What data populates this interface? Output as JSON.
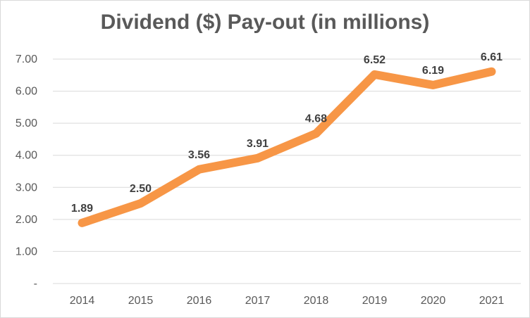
{
  "chart_data": {
    "type": "line",
    "title": "Dividend ($) Pay-out (in millions)",
    "xlabel": "",
    "ylabel": "",
    "categories": [
      "2014",
      "2015",
      "2016",
      "2017",
      "2018",
      "2019",
      "2020",
      "2021"
    ],
    "series": [
      {
        "values": [
          1.89,
          2.5,
          3.56,
          3.91,
          4.68,
          6.52,
          6.19,
          6.61
        ],
        "labels": [
          "1.89",
          "2.50",
          "3.56",
          "3.91",
          "4.68",
          "6.52",
          "6.19",
          "6.61"
        ],
        "color": "#F79646"
      }
    ],
    "ylim": [
      0,
      7
    ],
    "y_ticks": [
      0,
      1,
      2,
      3,
      4,
      5,
      6,
      7
    ],
    "y_tick_labels": [
      "-",
      "1.00",
      "2.00",
      "3.00",
      "4.00",
      "5.00",
      "6.00",
      "7.00"
    ],
    "gridlines": true,
    "gridline_color": "#d9d9d9",
    "legend": "none"
  }
}
